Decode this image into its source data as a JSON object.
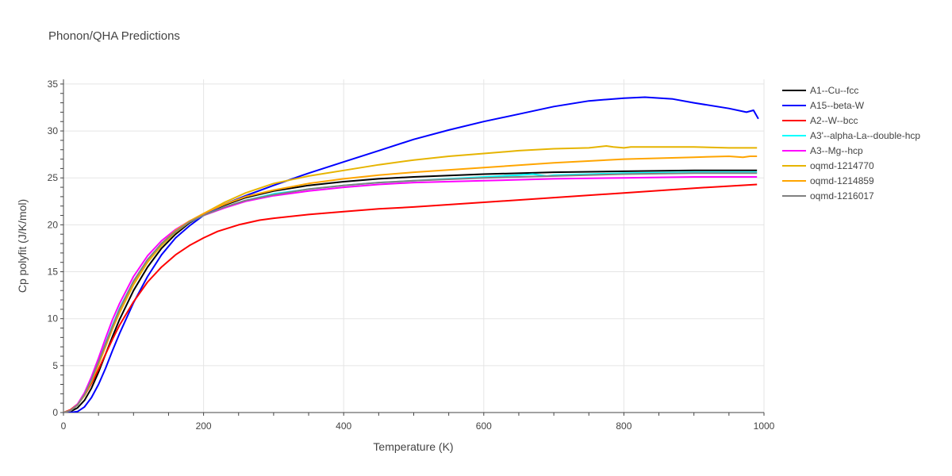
{
  "chart_data": {
    "type": "line",
    "title": "Phonon/QHA Predictions",
    "xlabel": "Temperature (K)",
    "ylabel": "Cp polyfit (J/K/mol)",
    "xlim": [
      0,
      1000
    ],
    "ylim": [
      0,
      35.5
    ],
    "x_ticks": [
      0,
      200,
      400,
      600,
      800,
      1000
    ],
    "y_ticks": [
      0,
      5,
      10,
      15,
      20,
      25,
      30,
      35
    ],
    "x_tick_labels": [
      "0",
      "200",
      "400",
      "600",
      "800",
      "1000"
    ],
    "y_tick_labels": [
      "0",
      "5",
      "10",
      "15",
      "20",
      "25",
      "30",
      "35"
    ],
    "grid": true,
    "legend_position": "top-right, outside plot",
    "series": [
      {
        "name": "A1--Cu--fcc",
        "color": "#000000",
        "x": [
          0,
          10,
          20,
          30,
          40,
          50,
          60,
          70,
          80,
          100,
          120,
          140,
          160,
          180,
          200,
          230,
          260,
          300,
          350,
          400,
          450,
          500,
          600,
          700,
          800,
          900,
          990
        ],
        "y": [
          0,
          0.1,
          0.5,
          1.3,
          2.6,
          4.3,
          6.2,
          8.1,
          9.9,
          13.0,
          15.5,
          17.5,
          19.0,
          20.2,
          21.1,
          22.1,
          22.9,
          23.6,
          24.2,
          24.6,
          24.9,
          25.1,
          25.4,
          25.6,
          25.7,
          25.8,
          25.8
        ]
      },
      {
        "name": "A15--beta-W",
        "color": "#0000ff",
        "x": [
          0,
          10,
          20,
          30,
          40,
          50,
          60,
          70,
          80,
          100,
          120,
          140,
          160,
          180,
          200,
          230,
          260,
          300,
          350,
          400,
          450,
          500,
          550,
          600,
          650,
          700,
          750,
          800,
          830,
          870,
          900,
          950,
          975,
          985,
          992
        ],
        "y": [
          0,
          0,
          0.1,
          0.6,
          1.6,
          3.0,
          4.7,
          6.6,
          8.4,
          11.7,
          14.5,
          16.8,
          18.6,
          19.9,
          21.0,
          22.2,
          23.1,
          24.2,
          25.5,
          26.7,
          27.9,
          29.1,
          30.1,
          31.0,
          31.8,
          32.6,
          33.2,
          33.5,
          33.6,
          33.4,
          33.0,
          32.4,
          32.0,
          32.2,
          31.3
        ]
      },
      {
        "name": "A2--W--bcc",
        "color": "#ff0000",
        "x": [
          0,
          10,
          20,
          30,
          40,
          50,
          60,
          70,
          80,
          100,
          120,
          140,
          160,
          180,
          200,
          220,
          250,
          280,
          300,
          350,
          400,
          450,
          500,
          600,
          700,
          800,
          900,
          990
        ],
        "y": [
          0,
          0.3,
          0.9,
          1.8,
          3.1,
          4.6,
          6.2,
          7.8,
          9.3,
          11.8,
          13.9,
          15.5,
          16.8,
          17.8,
          18.6,
          19.3,
          20.0,
          20.5,
          20.7,
          21.1,
          21.4,
          21.7,
          21.9,
          22.4,
          22.9,
          23.4,
          23.9,
          24.3
        ]
      },
      {
        "name": "A3'--alpha-La--double-hcp",
        "color": "#00ffff",
        "x": [
          0,
          10,
          20,
          30,
          40,
          50,
          60,
          70,
          80,
          100,
          120,
          140,
          160,
          180,
          200,
          230,
          260,
          300,
          350,
          400,
          450,
          500,
          550,
          600,
          650,
          670,
          690,
          700,
          750,
          800,
          900,
          990
        ],
        "y": [
          0,
          0.2,
          0.8,
          1.9,
          3.5,
          5.4,
          7.4,
          9.3,
          11.1,
          14.0,
          16.3,
          18.0,
          19.3,
          20.3,
          21.0,
          21.9,
          22.6,
          23.3,
          23.8,
          24.2,
          24.5,
          24.7,
          24.9,
          25.1,
          25.3,
          25.4,
          25.2,
          25.3,
          25.4,
          25.5,
          25.6,
          25.6
        ]
      },
      {
        "name": "A3--Mg--hcp",
        "color": "#ff00ff",
        "x": [
          0,
          10,
          20,
          30,
          40,
          50,
          60,
          70,
          80,
          100,
          120,
          140,
          160,
          180,
          200,
          230,
          260,
          300,
          350,
          400,
          450,
          500,
          600,
          700,
          800,
          900,
          990
        ],
        "y": [
          0,
          0.2,
          0.9,
          2.1,
          3.8,
          5.8,
          7.9,
          9.9,
          11.6,
          14.5,
          16.7,
          18.3,
          19.5,
          20.4,
          21.0,
          21.8,
          22.5,
          23.1,
          23.6,
          24.0,
          24.3,
          24.5,
          24.7,
          24.9,
          25.0,
          25.1,
          25.1
        ]
      },
      {
        "name": "oqmd-1214770",
        "color": "#e6b400",
        "x": [
          0,
          10,
          20,
          30,
          40,
          50,
          60,
          70,
          80,
          100,
          120,
          140,
          160,
          180,
          200,
          230,
          260,
          300,
          350,
          400,
          450,
          500,
          550,
          600,
          650,
          700,
          750,
          775,
          785,
          800,
          810,
          850,
          900,
          950,
          990
        ],
        "y": [
          0,
          0.2,
          0.8,
          1.8,
          3.3,
          5.1,
          7.0,
          8.9,
          10.6,
          13.6,
          16.0,
          17.8,
          19.2,
          20.3,
          21.2,
          22.4,
          23.4,
          24.4,
          25.2,
          25.8,
          26.4,
          26.9,
          27.3,
          27.6,
          27.9,
          28.1,
          28.2,
          28.4,
          28.3,
          28.2,
          28.3,
          28.3,
          28.3,
          28.2,
          28.2
        ]
      },
      {
        "name": "oqmd-1214859",
        "color": "#ffa500",
        "x": [
          0,
          10,
          20,
          30,
          40,
          50,
          60,
          70,
          80,
          100,
          120,
          140,
          160,
          180,
          200,
          230,
          260,
          300,
          350,
          400,
          450,
          500,
          600,
          700,
          800,
          900,
          950,
          970,
          980,
          990
        ],
        "y": [
          0,
          0.2,
          0.8,
          1.9,
          3.4,
          5.2,
          7.1,
          9.0,
          10.8,
          13.8,
          16.2,
          18.0,
          19.4,
          20.4,
          21.2,
          22.2,
          23.0,
          23.7,
          24.4,
          24.9,
          25.3,
          25.6,
          26.1,
          26.6,
          27.0,
          27.2,
          27.3,
          27.2,
          27.3,
          27.3
        ]
      },
      {
        "name": "oqmd-1216017",
        "color": "#808080",
        "x": [
          0,
          10,
          20,
          30,
          40,
          50,
          60,
          70,
          80,
          100,
          120,
          140,
          160,
          180,
          200,
          230,
          260,
          300,
          350,
          400,
          450,
          500,
          600,
          700,
          800,
          900,
          990
        ],
        "y": [
          0,
          0.2,
          0.8,
          1.9,
          3.5,
          5.4,
          7.3,
          9.2,
          11.0,
          14.0,
          16.3,
          18.0,
          19.3,
          20.3,
          21.0,
          21.9,
          22.6,
          23.2,
          23.8,
          24.2,
          24.5,
          24.7,
          25.0,
          25.2,
          25.4,
          25.5,
          25.5
        ]
      }
    ]
  }
}
